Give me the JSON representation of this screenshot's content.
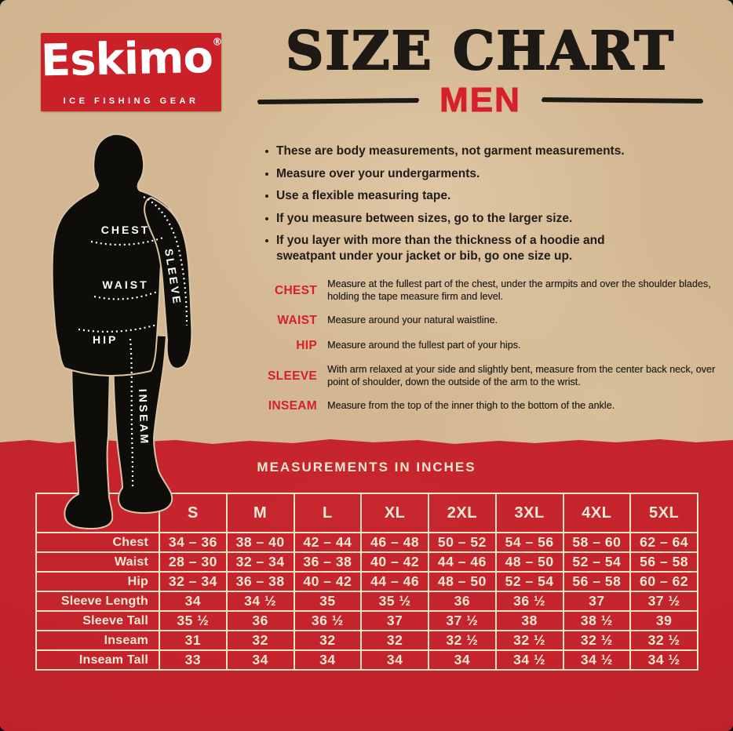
{
  "colors": {
    "paper": "#d3b792",
    "red_band": "#c3232b",
    "logo_red": "#ca2027",
    "accent_red": "#d5212b",
    "ink": "#1d1915",
    "cream": "#f2e5cc",
    "silhouette": "#0f0d0a"
  },
  "logo": {
    "brand": "Eskimo",
    "registered": "®",
    "tagline": "ICE FISHING GEAR"
  },
  "header": {
    "title": "SIZE CHART",
    "subtitle": "MEN"
  },
  "bullets": [
    "These are body measurements, not garment measurements.",
    "Measure over your undergarments.",
    "Use a flexible measuring tape.",
    "If you measure between sizes, go to the larger size.",
    "If you layer with more than the thickness of a hoodie and sweatpant under your jacket or bib, go one size up."
  ],
  "definitions": [
    {
      "term": "CHEST",
      "desc": "Measure at the fullest part of the chest, under the armpits and over the shoulder blades, holding the tape measure firm and level."
    },
    {
      "term": "WAIST",
      "desc": "Measure around your natural waistline."
    },
    {
      "term": "HIP",
      "desc": "Measure around the fullest part of your hips."
    },
    {
      "term": "SLEEVE",
      "desc": "With arm relaxed at your side and slightly bent, measure from the center back neck, over point of shoulder, down the outside of the arm to the wrist."
    },
    {
      "term": "INSEAM",
      "desc": "Measure from the top of the inner thigh to the bottom of the ankle."
    }
  ],
  "figure_labels": {
    "chest": "CHEST",
    "waist": "WAIST",
    "hip": "HIP",
    "sleeve": "SLEEVE",
    "inseam": "INSEAM"
  },
  "size_table": {
    "title": "MEASUREMENTS IN INCHES",
    "columns": [
      "S",
      "M",
      "L",
      "XL",
      "2XL",
      "3XL",
      "4XL",
      "5XL"
    ],
    "rows": [
      {
        "label": "Chest",
        "values": [
          "34 – 36",
          "38 – 40",
          "42 – 44",
          "46 – 48",
          "50 – 52",
          "54 – 56",
          "58 – 60",
          "62 – 64"
        ]
      },
      {
        "label": "Waist",
        "values": [
          "28 – 30",
          "32 – 34",
          "36 – 38",
          "40 – 42",
          "44 – 46",
          "48 – 50",
          "52 – 54",
          "56 – 58"
        ]
      },
      {
        "label": "Hip",
        "values": [
          "32 – 34",
          "36 – 38",
          "40 – 42",
          "44 – 46",
          "48 – 50",
          "52 – 54",
          "56 – 58",
          "60 – 62"
        ]
      },
      {
        "label": "Sleeve Length",
        "values": [
          "34",
          "34 ½",
          "35",
          "35 ½",
          "36",
          "36 ½",
          "37",
          "37 ½"
        ]
      },
      {
        "label": "Sleeve Tall",
        "values": [
          "35 ½",
          "36",
          "36 ½",
          "37",
          "37 ½",
          "38",
          "38 ½",
          "39"
        ]
      },
      {
        "label": "Inseam",
        "values": [
          "31",
          "32",
          "32",
          "32",
          "32 ½",
          "32 ½",
          "32 ½",
          "32 ½"
        ]
      },
      {
        "label": "Inseam Tall",
        "values": [
          "33",
          "34",
          "34",
          "34",
          "34",
          "34 ½",
          "34 ½",
          "34 ½"
        ]
      }
    ]
  }
}
